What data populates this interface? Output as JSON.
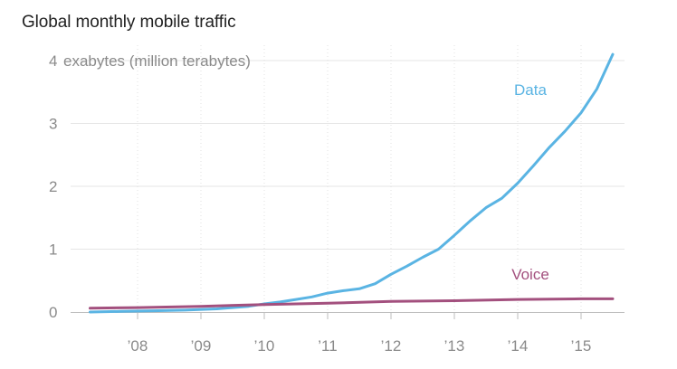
{
  "chart_data": {
    "type": "line",
    "title": "Global monthly mobile traffic",
    "y_unit_label": "exabytes (million terabytes)",
    "xlabel": "",
    "ylabel": "",
    "xlim": [
      2007.05,
      2015.9
    ],
    "ylim": [
      0,
      4.2
    ],
    "y_ticks": [
      0,
      1,
      2,
      3,
      4
    ],
    "x_ticks": [
      {
        "value": 2008,
        "label": "’08"
      },
      {
        "value": 2009,
        "label": "’09"
      },
      {
        "value": 2010,
        "label": "’10"
      },
      {
        "value": 2011,
        "label": "’11"
      },
      {
        "value": 2012,
        "label": "’12"
      },
      {
        "value": 2013,
        "label": "’13"
      },
      {
        "value": 2014,
        "label": "’14"
      },
      {
        "value": 2015,
        "label": "’15"
      }
    ],
    "grid": true,
    "series": [
      {
        "name": "Data",
        "color": "#5ab4e3",
        "label_color": "#5ab4e3",
        "label_at": [
          2014.2,
          3.45
        ],
        "points": [
          [
            2007.25,
            0.0
          ],
          [
            2007.75,
            0.01
          ],
          [
            2008.25,
            0.02
          ],
          [
            2008.75,
            0.03
          ],
          [
            2009.25,
            0.05
          ],
          [
            2009.75,
            0.09
          ],
          [
            2010.0,
            0.13
          ],
          [
            2010.25,
            0.16
          ],
          [
            2010.5,
            0.2
          ],
          [
            2010.75,
            0.24
          ],
          [
            2011.0,
            0.3
          ],
          [
            2011.25,
            0.34
          ],
          [
            2011.5,
            0.37
          ],
          [
            2011.75,
            0.45
          ],
          [
            2012.0,
            0.6
          ],
          [
            2012.25,
            0.73
          ],
          [
            2012.5,
            0.87
          ],
          [
            2012.75,
            1.0
          ],
          [
            2013.0,
            1.22
          ],
          [
            2013.25,
            1.45
          ],
          [
            2013.5,
            1.66
          ],
          [
            2013.75,
            1.81
          ],
          [
            2014.0,
            2.05
          ],
          [
            2014.25,
            2.33
          ],
          [
            2014.5,
            2.62
          ],
          [
            2014.75,
            2.88
          ],
          [
            2015.0,
            3.17
          ],
          [
            2015.25,
            3.55
          ],
          [
            2015.5,
            4.1
          ]
        ]
      },
      {
        "name": "Voice",
        "color": "#a3507e",
        "label_color": "#a3507e",
        "label_at": [
          2014.2,
          0.52
        ],
        "points": [
          [
            2007.25,
            0.06
          ],
          [
            2008.0,
            0.07
          ],
          [
            2009.0,
            0.09
          ],
          [
            2010.0,
            0.12
          ],
          [
            2011.0,
            0.14
          ],
          [
            2012.0,
            0.17
          ],
          [
            2013.0,
            0.18
          ],
          [
            2014.0,
            0.2
          ],
          [
            2015.0,
            0.21
          ],
          [
            2015.5,
            0.21
          ]
        ]
      }
    ]
  }
}
